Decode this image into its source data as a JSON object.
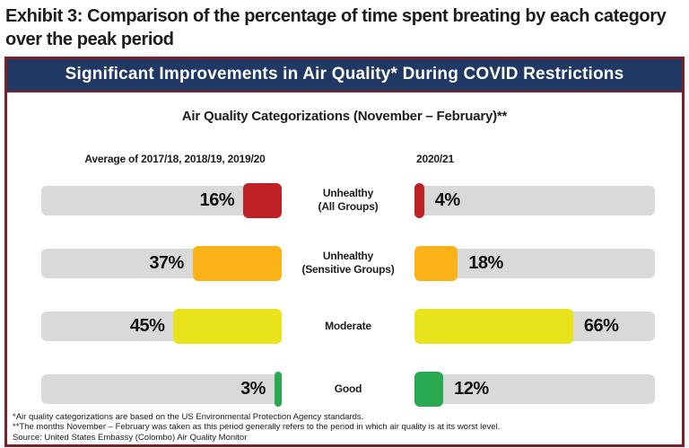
{
  "page_title": "Exhibit 3: Comparison of the percentage of time spent breating by each category over the peak period",
  "banner_title": "Significant Improvements in Air Quality* During COVID Restrictions",
  "subtitle": "Air Quality Categorizations (November – February)**",
  "columns": {
    "left_header": "Average of 2017/18, 2018/19, 2019/20",
    "right_header": "2020/21"
  },
  "colors": {
    "banner_bg": "#203864",
    "box_border": "#7e1f24",
    "track_gray": "#d9d9d9",
    "unhealthy_all": "#bf2026",
    "unhealthy_sensitive": "#fbb216",
    "moderate": "#e9e31c",
    "good": "#28a84f"
  },
  "rows": [
    {
      "label_line1": "Unhealthy",
      "label_line2": "(All Groups)",
      "left_value": "16%",
      "right_value": "4%",
      "left_pct": 16,
      "right_pct": 4,
      "color": "#bf2026"
    },
    {
      "label_line1": "Unhealthy",
      "label_line2": "(Sensitive Groups)",
      "left_value": "37%",
      "right_value": "18%",
      "left_pct": 37,
      "right_pct": 18,
      "color": "#fbb216"
    },
    {
      "label_line1": "Moderate",
      "label_line2": "",
      "left_value": "45%",
      "right_value": "66%",
      "left_pct": 45,
      "right_pct": 66,
      "color": "#e9e31c"
    },
    {
      "label_line1": "Good",
      "label_line2": "",
      "left_value": "3%",
      "right_value": "12%",
      "left_pct": 3,
      "right_pct": 12,
      "color": "#28a84f"
    }
  ],
  "footnotes": [
    "*Air quality categorizations are based on the US Environmental Protection Agency standards.",
    "**The months November – February was taken as this period generally refers to the period in which air quality is at its worst level.",
    "Source: United States Embassy (Colombo) Air Quality Monitor"
  ],
  "chart_data": {
    "type": "bar",
    "title": "Air Quality Categorizations (November – February)**",
    "banner": "Significant Improvements in Air Quality* During COVID Restrictions",
    "categories": [
      "Unhealthy (All Groups)",
      "Unhealthy (Sensitive Groups)",
      "Moderate",
      "Good"
    ],
    "series": [
      {
        "name": "Average of 2017/18, 2018/19, 2019/20",
        "values": [
          16,
          37,
          45,
          3
        ]
      },
      {
        "name": "2020/21",
        "values": [
          4,
          18,
          66,
          12
        ]
      }
    ],
    "unit": "%",
    "xlim": [
      0,
      100
    ],
    "orientation": "horizontal",
    "layout": "mirrored two-column, category labels centered between columns",
    "category_colors": [
      "#bf2026",
      "#fbb216",
      "#e9e31c",
      "#28a84f"
    ],
    "grid": false,
    "legend_position": "column headers above bars"
  }
}
